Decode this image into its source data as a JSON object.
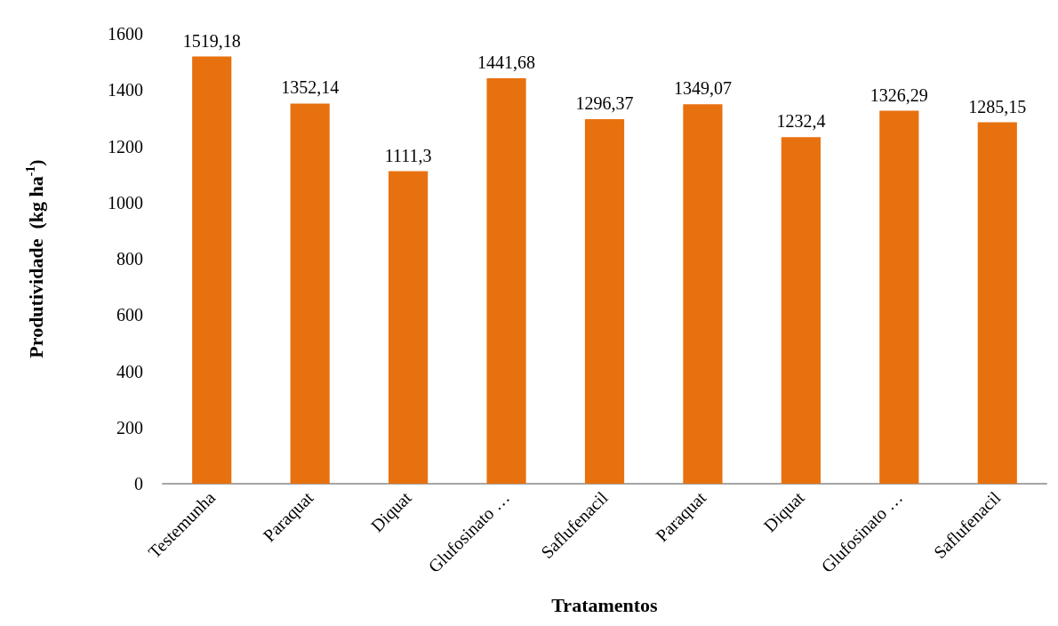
{
  "chart_data": {
    "type": "bar",
    "xlabel": "Tratamentos",
    "ylabel": "Produtividade  (kg ha$^{-1}$)",
    "categories": [
      "Testemunha",
      "Paraquat",
      "Diquat",
      "Glufosinato …",
      "Saflufenacil",
      "Paraquat",
      "Diquat",
      "Glufosinato …",
      "Saflufenacil"
    ],
    "values": [
      1519.18,
      1352.14,
      1111.3,
      1441.68,
      1296.37,
      1349.07,
      1232.4,
      1326.29,
      1285.15
    ],
    "value_labels": [
      "1519,18",
      "1352,14",
      "1111,3",
      "1441,68",
      "1296,37",
      "1349,07",
      "1232,4",
      "1326,29",
      "1285,15"
    ],
    "color": "#e8710f",
    "ylim": [
      0,
      1600
    ],
    "yticks": [
      0,
      200,
      400,
      600,
      800,
      1000,
      1200,
      1400,
      1600
    ],
    "grid": false
  }
}
